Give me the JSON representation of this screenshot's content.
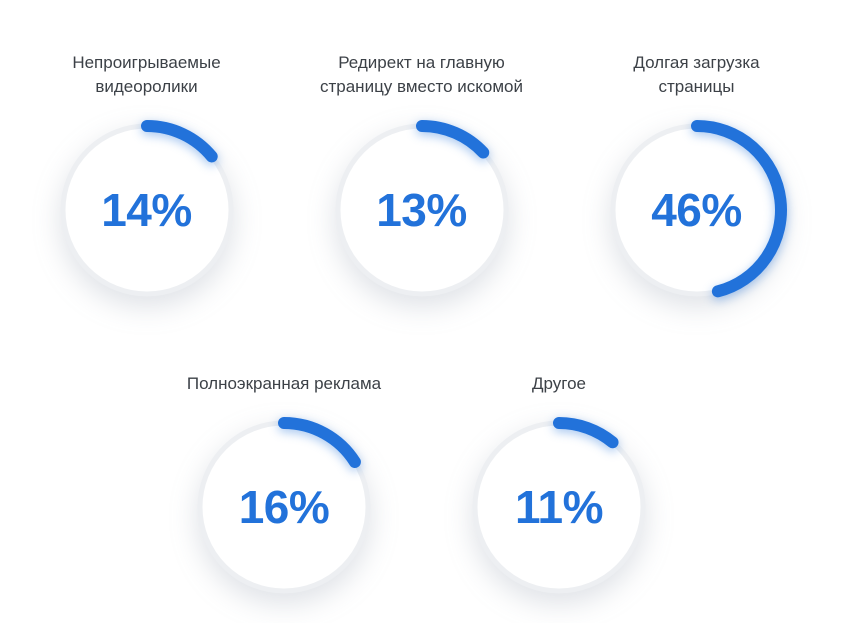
{
  "colors": {
    "accent": "#2272da",
    "track": "#edeff2",
    "label_text": "#3c4147",
    "background": "#ffffff"
  },
  "charts": [
    {
      "label": "Непроигрываемые\nвидеоролики",
      "value": 14,
      "display": "14%"
    },
    {
      "label": "Редирект на главную\nстраницу вместо искомой",
      "value": 13,
      "display": "13%"
    },
    {
      "label": "Долгая загрузка\nстраницы",
      "value": 46,
      "display": "46%"
    },
    {
      "label": "Полноэкранная реклама",
      "value": 16,
      "display": "16%"
    },
    {
      "label": "Другое",
      "value": 11,
      "display": "11%"
    }
  ],
  "chart_data": {
    "type": "pie",
    "variant": "donut-gauge-set",
    "title": "",
    "unit": "%",
    "categories": [
      "Непроигрываемые видеоролики",
      "Редирект на главную страницу вместо искомой",
      "Долгая загрузка страницы",
      "Полноэкранная реклама",
      "Другое"
    ],
    "values": [
      14,
      13,
      46,
      16,
      11
    ],
    "layout_hints": {
      "rows": [
        3,
        2
      ],
      "arc_start": "top",
      "arc_direction": "clockwise",
      "value_label_position": "center"
    }
  }
}
